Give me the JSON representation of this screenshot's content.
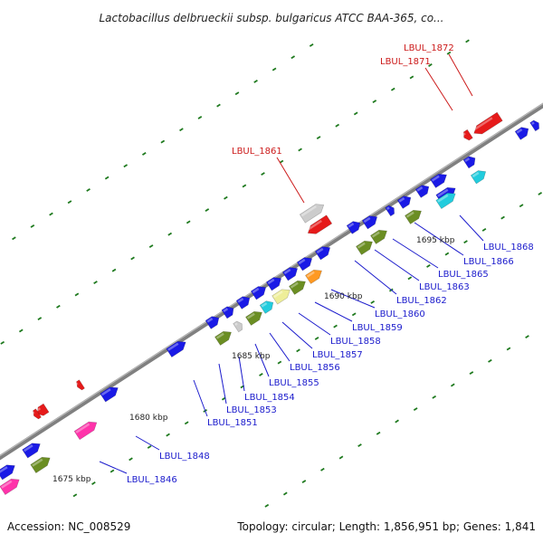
{
  "title": "Lactobacillus delbrueckii subsp. bulgaricus ATCC BAA-365, co...",
  "footer": {
    "accession": "Accession: NC_008529",
    "summary": "Topology: circular; Length: 1,856,951 bp; Genes: 1,841"
  },
  "colors": {
    "backbone": "#808080",
    "forward_gene": "#1a1ae6",
    "reverse_gene": "#e61a1a",
    "label_blue": "#1a1acc",
    "label_red": "#cc1a1a",
    "tick": "#1f7a1f",
    "olive": "#6b8e23",
    "magenta": "#ff33aa",
    "cyan": "#22ccdd",
    "khaki": "#eeee99",
    "orange": "#ff9922",
    "grey_feature": "#cccccc"
  },
  "scale_labels": [
    "1675 kbp",
    "1680 kbp",
    "1685 kbp",
    "1690 kbp",
    "1695 kbp"
  ],
  "gene_labels": [
    {
      "text": "LBUL_1846",
      "color": "blue"
    },
    {
      "text": "LBUL_1848",
      "color": "blue"
    },
    {
      "text": "LBUL_1851",
      "color": "blue"
    },
    {
      "text": "LBUL_1853",
      "color": "blue"
    },
    {
      "text": "LBUL_1854",
      "color": "blue"
    },
    {
      "text": "LBUL_1855",
      "color": "blue"
    },
    {
      "text": "LBUL_1856",
      "color": "blue"
    },
    {
      "text": "LBUL_1857",
      "color": "blue"
    },
    {
      "text": "LBUL_1858",
      "color": "blue"
    },
    {
      "text": "LBUL_1859",
      "color": "blue"
    },
    {
      "text": "LBUL_1860",
      "color": "blue"
    },
    {
      "text": "LBUL_1862",
      "color": "blue"
    },
    {
      "text": "LBUL_1863",
      "color": "blue"
    },
    {
      "text": "LBUL_1865",
      "color": "blue"
    },
    {
      "text": "LBUL_1866",
      "color": "blue"
    },
    {
      "text": "LBUL_1868",
      "color": "blue"
    },
    {
      "text": "LBUL_1861",
      "color": "red"
    },
    {
      "text": "LBUL_1871",
      "color": "red"
    },
    {
      "text": "LBUL_1872",
      "color": "red"
    }
  ]
}
